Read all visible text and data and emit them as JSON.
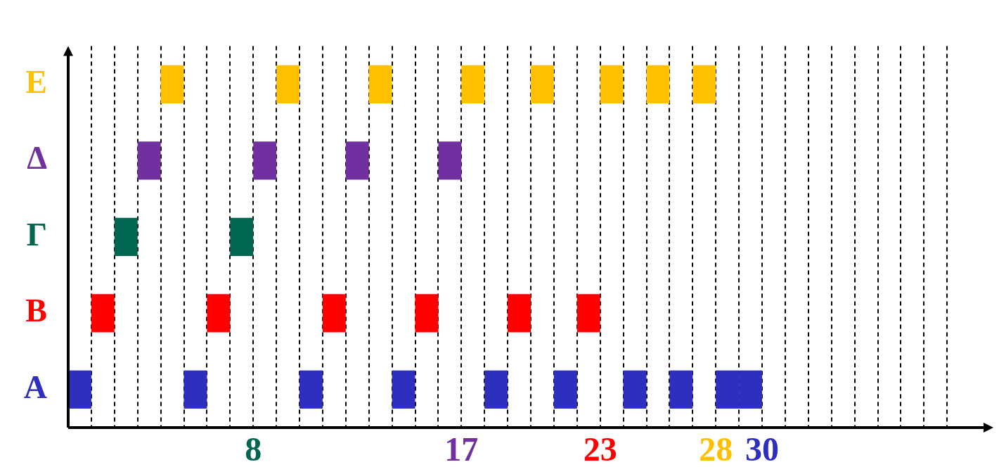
{
  "chart_data": {
    "type": "bar",
    "orientation": "horizontal",
    "xlim": [
      0,
      40
    ],
    "grid": "x",
    "categories": [
      "Ε",
      "Δ",
      "Γ",
      "Β",
      "Α"
    ],
    "xticks": [
      {
        "value": 1,
        "label": null
      },
      {
        "value": 2,
        "label": null
      },
      {
        "value": 3,
        "label": null
      },
      {
        "value": 4,
        "label": null
      },
      {
        "value": 5,
        "label": null
      },
      {
        "value": 6,
        "label": null
      },
      {
        "value": 7,
        "label": null
      },
      8,
      {
        "value": 9,
        "label": null
      },
      {
        "value": 10,
        "label": null
      },
      {
        "value": 11,
        "label": null
      },
      {
        "value": 12,
        "label": null
      },
      {
        "value": 13,
        "label": null
      },
      {
        "value": 14,
        "label": null
      },
      {
        "value": 15,
        "label": null
      },
      {
        "value": 16,
        "label": null
      },
      17,
      {
        "value": 18,
        "label": null
      },
      {
        "value": 19,
        "label": null
      },
      {
        "value": 20,
        "label": null
      },
      {
        "value": 21,
        "label": null
      },
      {
        "value": 22,
        "label": null
      },
      23,
      {
        "value": 24,
        "label": null
      },
      {
        "value": 25,
        "label": null
      },
      {
        "value": 26,
        "label": null
      },
      {
        "value": 27,
        "label": null
      },
      28,
      {
        "value": 29,
        "label": null
      },
      30,
      {
        "value": 31,
        "label": null
      },
      {
        "value": 32,
        "label": null
      },
      {
        "value": 33,
        "label": null
      },
      {
        "value": 34,
        "label": null
      },
      {
        "value": 35,
        "label": null
      },
      {
        "value": 36,
        "label": null
      },
      {
        "value": 37,
        "label": null
      },
      {
        "value": 38,
        "label": null
      }
    ],
    "series": [
      {
        "colors": [
          "#ffc000",
          "#7030a0",
          "#006650",
          "#ff0000",
          "#2e2ebf"
        ],
        "base": [
          4,
          3,
          2,
          1,
          0
        ],
        "values": [
          1,
          1,
          1,
          1,
          1
        ]
      },
      {
        "colors": [
          "#ffc000",
          "#7030a0",
          "#006650",
          "#ff0000",
          "#2e2ebf"
        ],
        "base": [
          9,
          8,
          7,
          6,
          5
        ],
        "values": [
          1,
          1,
          1,
          1,
          1
        ]
      },
      {
        "colors": [
          "#ffc000",
          "#7030a0",
          "#006650",
          "#ff0000",
          "#2e2ebf"
        ],
        "base": [
          13,
          12,
          null,
          11,
          10
        ],
        "values": [
          1,
          1,
          null,
          1,
          1
        ]
      },
      {
        "colors": [
          "#ffc000",
          "#7030a0",
          "#006650",
          "#ff0000",
          "#2e2ebf"
        ],
        "base": [
          17,
          16,
          null,
          15,
          14
        ],
        "values": [
          1,
          1,
          null,
          1,
          1
        ]
      },
      {
        "colors": [
          "#ffc000",
          "#7030a0",
          "#006650",
          "#ff0000",
          "#2e2ebf"
        ],
        "base": [
          20,
          null,
          null,
          19,
          18
        ],
        "values": [
          1,
          null,
          null,
          1,
          1
        ]
      },
      {
        "colors": [
          "#ffc000",
          "#7030a0",
          "#006650",
          "#ff0000",
          "#2e2ebf"
        ],
        "base": [
          23,
          null,
          null,
          22,
          21
        ],
        "values": [
          1,
          null,
          null,
          1,
          1
        ]
      },
      {
        "colors": [
          "#ffc000",
          "#7030a0",
          "#006650",
          "#ff0000",
          "#2e2ebf"
        ],
        "base": [
          25,
          null,
          null,
          null,
          24
        ],
        "values": [
          1,
          null,
          null,
          null,
          1
        ]
      },
      {
        "colors": [
          "#ffc000",
          "#7030a0",
          "#006650",
          "#ff0000",
          "#2e2ebf"
        ],
        "base": [
          27,
          null,
          null,
          null,
          26
        ],
        "values": [
          1,
          null,
          null,
          null,
          1
        ]
      },
      {
        "colors": [
          "#ffc000",
          "#7030a0",
          "#006650",
          "#ff0000",
          "#2e2ebf"
        ],
        "base": [
          null,
          null,
          null,
          null,
          28
        ],
        "values": [
          null,
          null,
          null,
          null,
          1
        ]
      },
      {
        "colors": [
          "#ffc000",
          "#7030a0",
          "#006650",
          "#ff0000",
          "#2e2ebf"
        ],
        "base": [
          null,
          null,
          null,
          null,
          29
        ],
        "values": [
          null,
          null,
          null,
          null,
          1
        ]
      }
    ]
  }
}
